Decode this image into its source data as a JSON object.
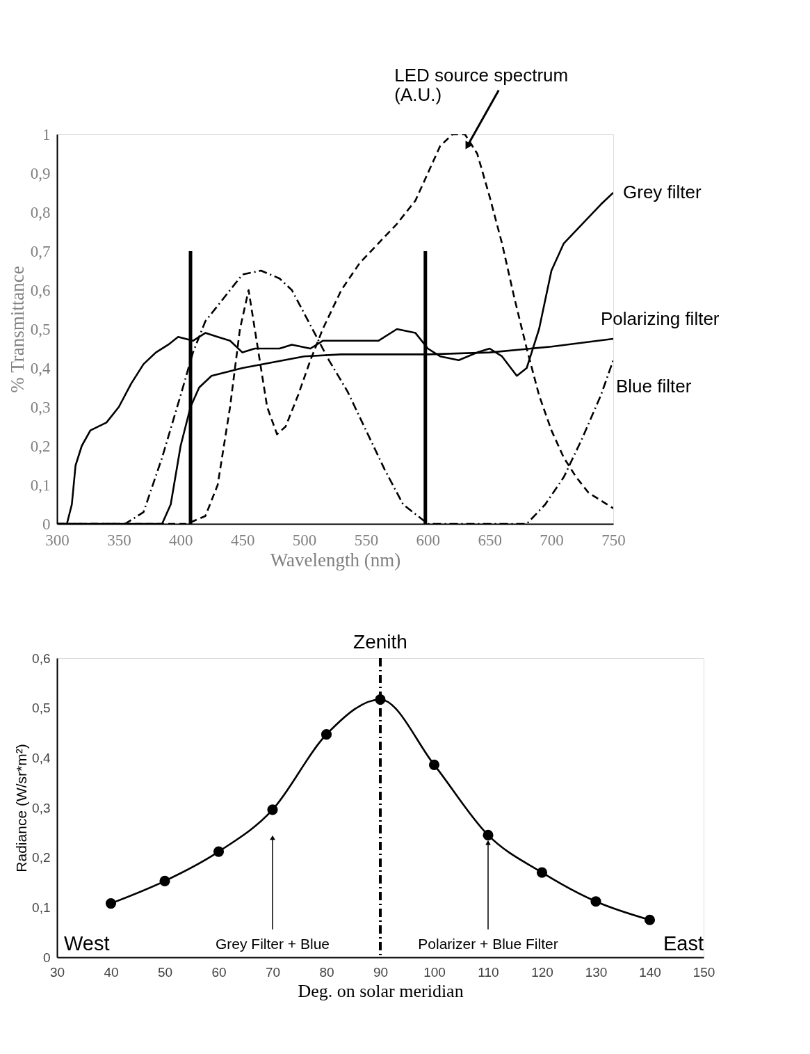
{
  "chart_data": [
    {
      "type": "line",
      "xlabel": "Wavelength  (nm)",
      "ylabel": "% Transmittance",
      "xlim": [
        300,
        750
      ],
      "xticks": [
        300,
        350,
        400,
        450,
        500,
        550,
        600,
        650,
        700,
        750
      ],
      "ylim": [
        0,
        1
      ],
      "yticks": [
        0,
        {
          "value": 0.1,
          "label": "0,1"
        },
        {
          "value": 0.2,
          "label": "0,2"
        },
        {
          "value": 0.3,
          "label": "0,3"
        },
        {
          "value": 0.4,
          "label": "0,4"
        },
        {
          "value": 0.5,
          "label": "0,5"
        },
        {
          "value": 0.6,
          "label": "0,6"
        },
        {
          "value": 0.7,
          "label": "0,7"
        },
        {
          "value": 0.8,
          "label": "0,8"
        },
        {
          "value": 0.9,
          "label": "0,9"
        },
        1
      ],
      "grid": false,
      "legend": false,
      "marker": "none",
      "series": [
        {
          "name": "Grey filter",
          "color": "#000000",
          "line_style": "solid",
          "x": [
            300,
            308,
            312,
            315,
            320,
            327,
            340,
            350,
            360,
            370,
            380,
            390,
            398,
            410,
            420,
            430,
            440,
            450,
            460,
            480,
            490,
            505,
            515,
            540,
            560,
            575,
            590,
            600,
            610,
            625,
            640,
            650,
            660,
            672,
            680,
            690,
            700,
            710,
            725,
            740,
            750
          ],
          "values": [
            0,
            0,
            0.05,
            0.15,
            0.2,
            0.24,
            0.26,
            0.3,
            0.36,
            0.41,
            0.44,
            0.46,
            0.48,
            0.47,
            0.49,
            0.48,
            0.47,
            0.44,
            0.45,
            0.45,
            0.46,
            0.45,
            0.47,
            0.47,
            0.47,
            0.5,
            0.49,
            0.45,
            0.43,
            0.42,
            0.44,
            0.45,
            0.43,
            0.38,
            0.4,
            0.5,
            0.65,
            0.72,
            0.77,
            0.82,
            0.85
          ]
        },
        {
          "name": "Polarizing filter",
          "color": "#000000",
          "line_style": "solid",
          "x": [
            300,
            385,
            392,
            400,
            408,
            415,
            425,
            450,
            500,
            530,
            600,
            650,
            700,
            750
          ],
          "values": [
            0,
            0,
            0.05,
            0.2,
            0.3,
            0.35,
            0.38,
            0.4,
            0.43,
            0.435,
            0.435,
            0.44,
            0.455,
            0.475
          ]
        },
        {
          "name": "Blue filter",
          "color": "#000000",
          "line_style": "dotted",
          "x": [
            300,
            355,
            370,
            385,
            400,
            410,
            420,
            435,
            450,
            465,
            480,
            490,
            500,
            510,
            520,
            535,
            550,
            565,
            580,
            600,
            680,
            695,
            710,
            725,
            740,
            750
          ],
          "values": [
            0,
            0,
            0.03,
            0.17,
            0.33,
            0.44,
            0.52,
            0.58,
            0.64,
            0.65,
            0.63,
            0.6,
            0.54,
            0.48,
            0.42,
            0.34,
            0.24,
            0.14,
            0.05,
            0,
            0,
            0.05,
            0.12,
            0.22,
            0.33,
            0.42
          ]
        },
        {
          "color": "#000000",
          "line_style": "dashed",
          "x": [
            300,
            405,
            420,
            430,
            440,
            448,
            455,
            460,
            465,
            470,
            478,
            485,
            495,
            505,
            515,
            530,
            545,
            560,
            575,
            590,
            600,
            610,
            620,
            630,
            640,
            650,
            660,
            670,
            680,
            690,
            700,
            710,
            720,
            730,
            750
          ],
          "values": [
            0,
            0,
            0.02,
            0.1,
            0.3,
            0.5,
            0.6,
            0.5,
            0.4,
            0.3,
            0.23,
            0.25,
            0.33,
            0.42,
            0.5,
            0.6,
            0.67,
            0.72,
            0.77,
            0.83,
            0.9,
            0.97,
            1.0,
            1.0,
            0.95,
            0.84,
            0.72,
            0.58,
            0.45,
            0.33,
            0.24,
            0.17,
            0.12,
            0.08,
            0.04
          ]
        },
        {
          "color": "#000000",
          "line_style": "solid",
          "x": [
            408,
            408
          ],
          "values": [
            0,
            0.7
          ]
        },
        {
          "color": "#000000",
          "line_style": "solid",
          "x": [
            598,
            598
          ],
          "values": [
            0,
            0.7
          ]
        }
      ],
      "annotations": [
        {
          "text": "LED source spectrum\n(A.U.)",
          "x": 632,
          "y": 0.97
        }
      ]
    },
    {
      "type": "line",
      "xlabel": "Deg. on solar meridian",
      "ylabel": "Radiance (W/sr*m²)",
      "xlim": [
        30,
        150
      ],
      "xticks": [
        30,
        40,
        50,
        60,
        70,
        80,
        90,
        100,
        110,
        120,
        130,
        140,
        150
      ],
      "ylim": [
        0,
        0.6
      ],
      "yticks": [
        0,
        {
          "value": 0.1,
          "label": "0,1"
        },
        {
          "value": 0.2,
          "label": "0,2"
        },
        {
          "value": 0.3,
          "label": "0,3"
        },
        {
          "value": 0.4,
          "label": "0,4"
        },
        {
          "value": 0.5,
          "label": "0,5"
        },
        {
          "value": 0.6,
          "label": "0,6"
        }
      ],
      "grid": false,
      "legend": false,
      "marker": "circle",
      "series": [
        {
          "color": "#000000",
          "line_style": "solid",
          "x": [
            40,
            50,
            60,
            70,
            80,
            90,
            100,
            110,
            120,
            130,
            140
          ],
          "values": [
            0.108,
            0.153,
            0.212,
            0.296,
            0.447,
            0.517,
            0.386,
            0.245,
            0.17,
            0.112,
            0.075
          ]
        }
      ],
      "ref_lines": [
        {
          "axis": "x",
          "value": 90,
          "label": "Zenith",
          "color": "#000000",
          "line_style": "dotted"
        }
      ],
      "annotations": [
        "West",
        "East",
        {
          "text": "Grey Filter + Blue",
          "x": 70,
          "y": 0.24
        },
        {
          "text": "Polarizer + Blue Filter",
          "x": 110,
          "y": 0.23
        }
      ]
    }
  ]
}
